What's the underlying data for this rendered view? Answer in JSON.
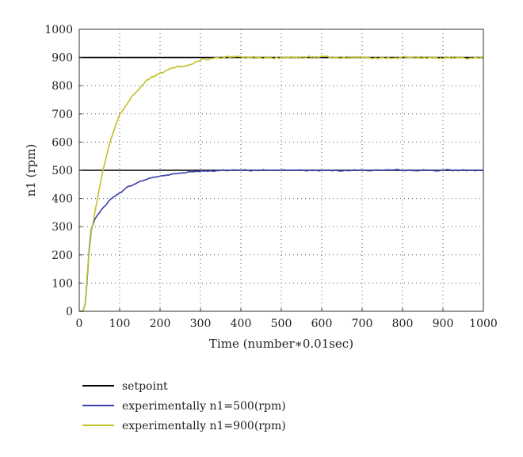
{
  "chart_data": {
    "type": "line",
    "title": "",
    "xlabel": "Time (number∗0.01sec)",
    "ylabel": "n1 (rpm)",
    "xlim": [
      0,
      1000
    ],
    "ylim": [
      0,
      1000
    ],
    "x_ticks": [
      0,
      100,
      200,
      300,
      400,
      500,
      600,
      700,
      800,
      900,
      1000
    ],
    "y_ticks": [
      0,
      100,
      200,
      300,
      400,
      500,
      600,
      700,
      800,
      900,
      1000
    ],
    "grid": "dotted",
    "legend_position": "bottom-left, outside plot",
    "series": [
      {
        "name": "setpoint",
        "color": "#000000",
        "segments": [
          {
            "x": [
              0,
              1000
            ],
            "y": [
              500,
              500
            ]
          },
          {
            "x": [
              0,
              1000
            ],
            "y": [
              900,
              900
            ]
          }
        ]
      },
      {
        "name": "experimentally n1=500(rpm)",
        "color": "#3a3ea8",
        "x": [
          0,
          10,
          15,
          20,
          25,
          30,
          35,
          40,
          50,
          60,
          70,
          80,
          100,
          120,
          150,
          175,
          200,
          225,
          250,
          275,
          300,
          350,
          400,
          450,
          500,
          600,
          700,
          800,
          900,
          1000
        ],
        "y": [
          0,
          0,
          30,
          120,
          230,
          290,
          310,
          330,
          350,
          370,
          385,
          400,
          420,
          440,
          460,
          472,
          480,
          485,
          490,
          495,
          497,
          499,
          500,
          500,
          500,
          500,
          500,
          500,
          500,
          500
        ]
      },
      {
        "name": "experimentally n1=900(rpm)",
        "color": "#c3c02a",
        "x": [
          0,
          10,
          15,
          20,
          25,
          30,
          40,
          50,
          60,
          70,
          80,
          90,
          100,
          120,
          140,
          160,
          180,
          200,
          220,
          240,
          260,
          280,
          300,
          320,
          350,
          400,
          450,
          500,
          600,
          700,
          800,
          900,
          1000
        ],
        "y": [
          0,
          0,
          30,
          130,
          220,
          280,
          360,
          440,
          510,
          570,
          620,
          660,
          700,
          740,
          780,
          810,
          830,
          845,
          855,
          865,
          870,
          880,
          890,
          895,
          900,
          900,
          900,
          900,
          900,
          900,
          900,
          900,
          900
        ]
      }
    ]
  }
}
